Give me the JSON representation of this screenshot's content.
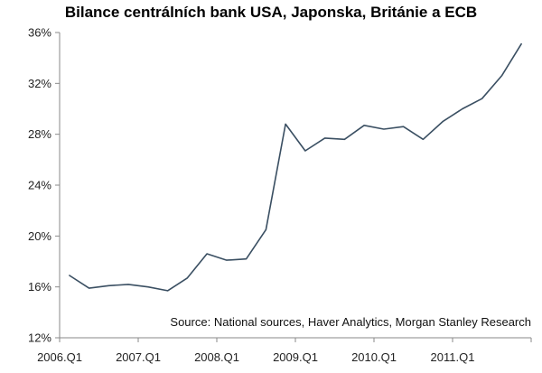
{
  "chart_data": {
    "type": "line",
    "title": "Bilance centrálních bank USA, Japonska, Británie a ECB",
    "source_note": "Source: National sources, Haver Analytics, Morgan Stanley Research",
    "xlabel": "",
    "ylabel": "",
    "ylim": [
      12,
      36
    ],
    "y_ticks": [
      {
        "value": 12,
        "label": "12%"
      },
      {
        "value": 16,
        "label": "16%"
      },
      {
        "value": 20,
        "label": "20%"
      },
      {
        "value": 24,
        "label": "24%"
      },
      {
        "value": 28,
        "label": "28%"
      },
      {
        "value": 32,
        "label": "32%"
      },
      {
        "value": 36,
        "label": "36%"
      }
    ],
    "x_ticks": [
      {
        "index": 0,
        "label": "2006.Q1"
      },
      {
        "index": 4,
        "label": "2007.Q1"
      },
      {
        "index": 8,
        "label": "2008.Q1"
      },
      {
        "index": 12,
        "label": "2009.Q1"
      },
      {
        "index": 16,
        "label": "2010.Q1"
      },
      {
        "index": 20,
        "label": "2011.Q1"
      }
    ],
    "grid": false,
    "line_color": "#3a4f62",
    "series": [
      {
        "values": [
          16.9,
          15.9,
          16.1,
          16.2,
          16.0,
          15.7,
          16.7,
          18.6,
          18.1,
          18.2,
          20.5,
          28.8,
          26.7,
          27.7,
          27.6,
          28.7,
          28.4,
          28.6,
          27.6,
          29.0,
          30.0,
          30.8,
          32.6,
          35.1
        ]
      }
    ]
  }
}
